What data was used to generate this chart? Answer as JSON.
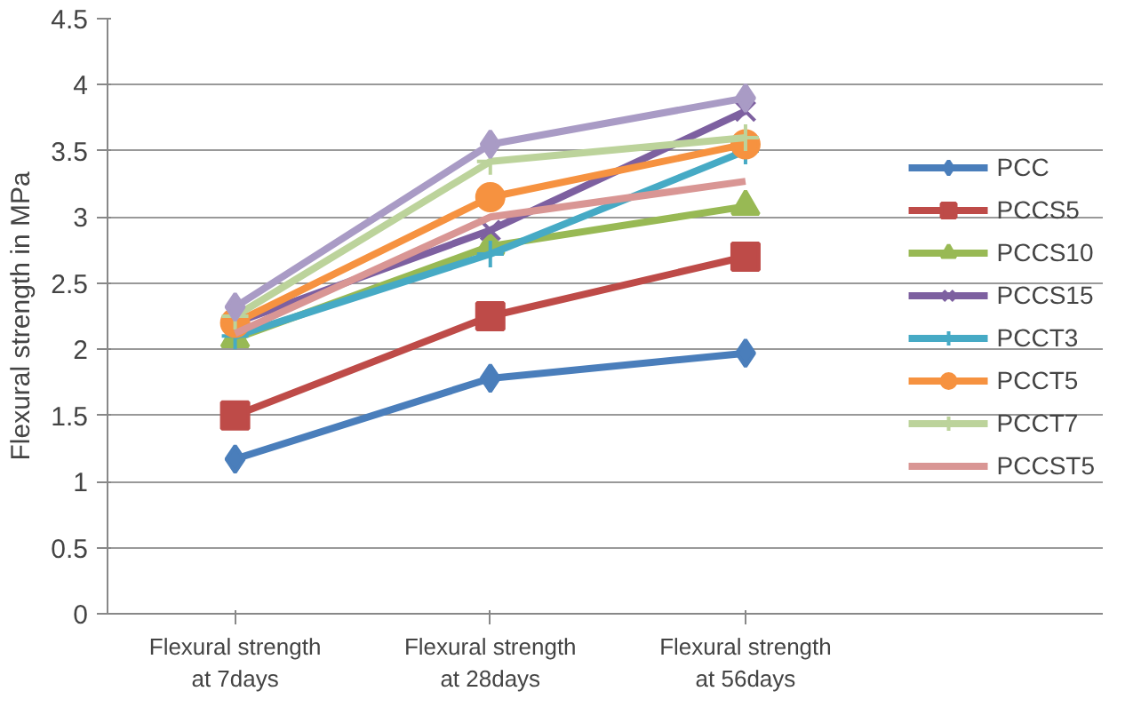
{
  "chart_data": {
    "type": "line",
    "ylabel": "Flexural strength in MPa",
    "categories": [
      "Flexural strength at 7days",
      "Flexural strength at 28days",
      "Flexural strength at 56days"
    ],
    "ylim": [
      0,
      4.5
    ],
    "yticks": [
      0,
      0.5,
      1,
      1.5,
      2,
      2.5,
      3,
      3.5,
      4,
      4.5
    ],
    "grid": "y",
    "legend": "right",
    "series": [
      {
        "name": "PCC",
        "color": "#4a7ebb",
        "marker": "diamond",
        "values": [
          1.17,
          1.78,
          1.97
        ]
      },
      {
        "name": "PCCS5",
        "color": "#be4b48",
        "marker": "square",
        "values": [
          1.5,
          2.25,
          2.7
        ]
      },
      {
        "name": "PCCS10",
        "color": "#98b954",
        "marker": "triangle",
        "values": [
          2.08,
          2.78,
          3.08
        ]
      },
      {
        "name": "PCCS15",
        "color": "#7d60a0",
        "marker": "x",
        "values": [
          2.2,
          2.9,
          3.8
        ]
      },
      {
        "name": "PCCT3",
        "color": "#46aac5",
        "marker": "cross",
        "values": [
          2.1,
          2.72,
          3.5
        ]
      },
      {
        "name": "PCCT5",
        "color": "#f69240",
        "marker": "circle",
        "values": [
          2.2,
          3.15,
          3.55
        ]
      },
      {
        "name": "PCCT7",
        "color": "#bcd39b",
        "marker": "cross",
        "values": [
          2.25,
          3.42,
          3.6
        ]
      },
      {
        "name": "PCCST5",
        "color": "#d99694",
        "marker": "none",
        "values": [
          2.12,
          3.0,
          3.27
        ]
      },
      {
        "color": "#a99bc5",
        "marker": "diamond",
        "values": [
          2.32,
          3.55,
          3.9
        ]
      }
    ]
  }
}
